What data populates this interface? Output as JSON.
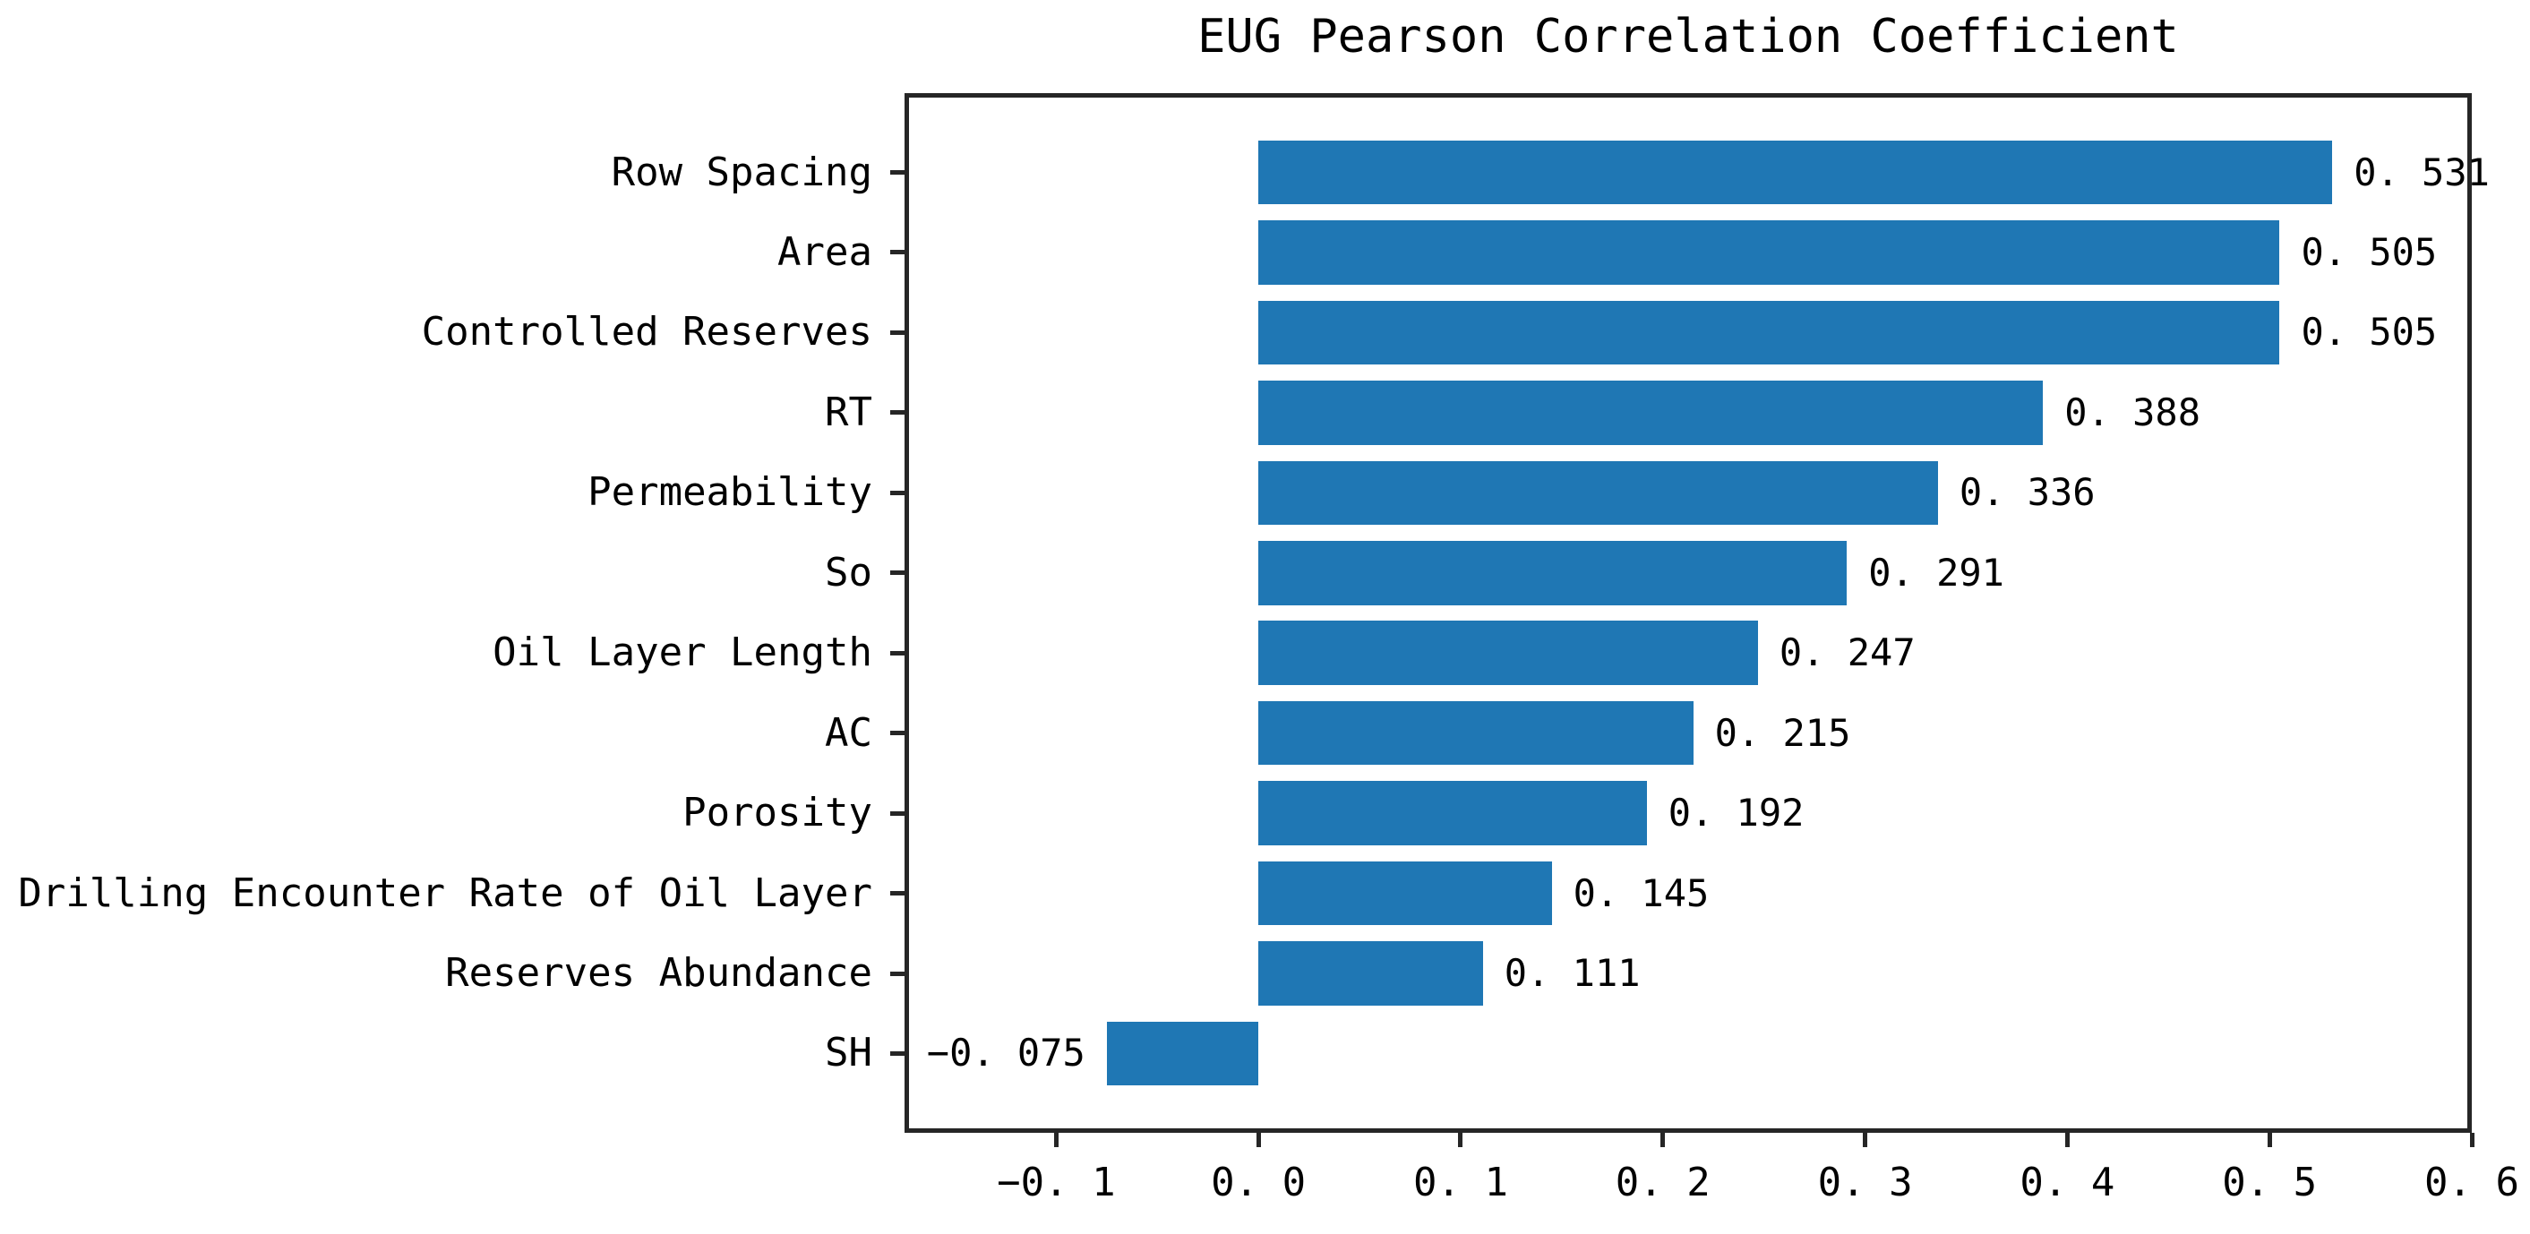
{
  "chart_data": {
    "type": "bar",
    "orientation": "horizontal",
    "title": "EUG Pearson Correlation Coefficient",
    "categories": [
      "Row Spacing",
      "Area",
      "Controlled Reserves",
      "RT",
      "Permeability",
      "So",
      "Oil Layer Length",
      "AC",
      "Porosity",
      "Drilling Encounter Rate of Oil Layer",
      "Reserves Abundance",
      "SH"
    ],
    "values": [
      0.531,
      0.505,
      0.505,
      0.388,
      0.336,
      0.291,
      0.247,
      0.215,
      0.192,
      0.145,
      0.111,
      -0.075
    ],
    "value_labels": [
      "0. 531",
      "0. 505",
      "0. 505",
      "0. 388",
      "0. 336",
      "0. 291",
      "0. 247",
      "0. 215",
      "0. 192",
      "0. 145",
      "0. 111",
      "−0. 075"
    ],
    "x_ticks": [
      -0.1,
      0.0,
      0.1,
      0.2,
      0.3,
      0.4,
      0.5,
      0.6
    ],
    "x_tick_labels": [
      "−0. 1",
      "0. 0",
      "0. 1",
      "0. 2",
      "0. 3",
      "0. 4",
      "0. 5",
      "0. 6"
    ],
    "xlim": [
      -0.175,
      0.6
    ],
    "bar_height_fraction": 0.8,
    "bar_color": "#1f77b4",
    "axis_color": "#262626",
    "text_color": "#000000",
    "background_color": "#ffffff",
    "grid": false,
    "legend": null
  }
}
